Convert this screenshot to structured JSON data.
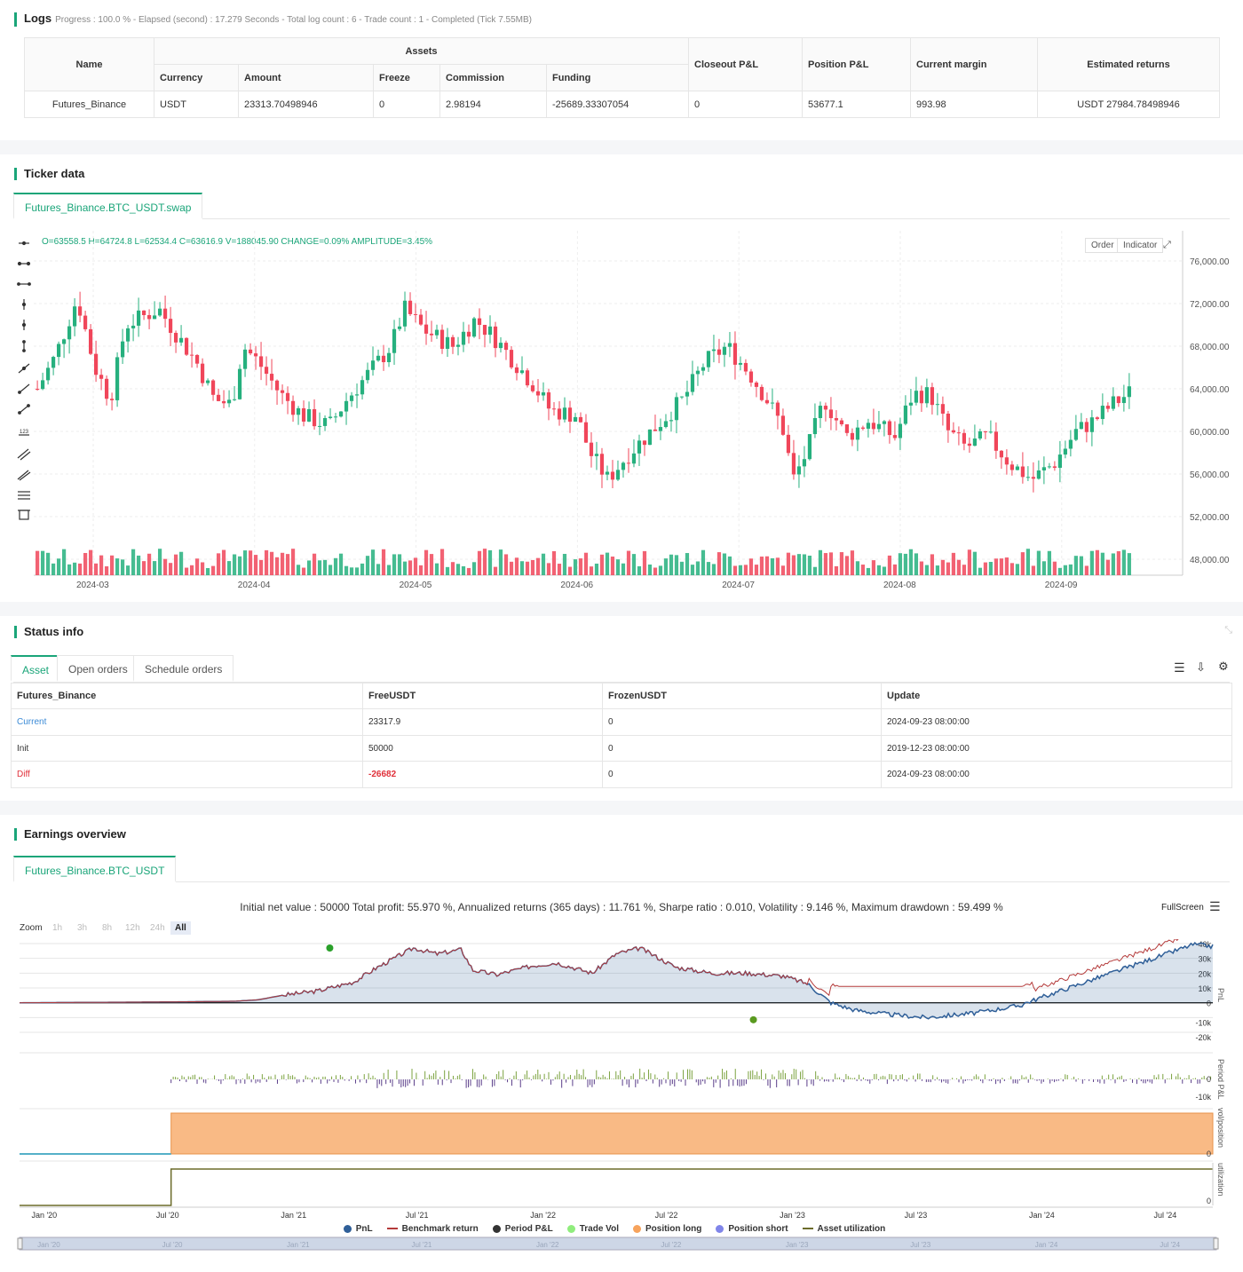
{
  "logs": {
    "title": "Logs",
    "progress": "Progress : 100.0 % - Elapsed (second) : 17.279  Seconds - Total log count : 6 - Trade count : 1 - Completed (Tick 7.55MB)",
    "headers": {
      "name": "Name",
      "assets": "Assets",
      "currency": "Currency",
      "amount": "Amount",
      "freeze": "Freeze",
      "commission": "Commission",
      "funding": "Funding",
      "closeout": "Closeout P&L",
      "position": "Position P&L",
      "margin": "Current margin",
      "estimated": "Estimated returns"
    },
    "row": {
      "name": "Futures_Binance",
      "currency": "USDT",
      "amount": "23313.70498946",
      "freeze": "0",
      "commission": "2.98194",
      "funding": "-25689.33307054",
      "closeout": "0",
      "position": "53677.1",
      "margin": "993.98",
      "estimated": "USDT 27984.78498946"
    }
  },
  "ticker": {
    "title": "Ticker data",
    "tab": "Futures_Binance.BTC_USDT.swap",
    "ohlc": "O=63558.5 H=64724.8 L=62534.4 C=63616.9 V=188045.90 CHANGE=0.09% AMPLITUDE=3.45%",
    "order_btn": "Order",
    "indicator_btn": "Indicator",
    "y_labels": [
      "76,000.00",
      "72,000.00",
      "68,000.00",
      "64,000.00",
      "60,000.00",
      "56,000.00",
      "52,000.00",
      "48,000.00"
    ],
    "x_labels": [
      "2024-03",
      "2024-04",
      "2024-05",
      "2024-06",
      "2024-07",
      "2024-08",
      "2024-09"
    ]
  },
  "status": {
    "title": "Status info",
    "tabs": [
      "Asset",
      "Open orders",
      "Schedule orders"
    ],
    "headers": [
      "Futures_Binance",
      "FreeUSDT",
      "FrozenUSDT",
      "Update"
    ],
    "rows": [
      [
        "Current",
        "23317.9",
        "0",
        "2024-09-23 08:00:00"
      ],
      [
        "Init",
        "50000",
        "0",
        "2019-12-23 08:00:00"
      ],
      [
        "Diff",
        "-26682",
        "0",
        "2024-09-23 08:00:00"
      ]
    ]
  },
  "earnings": {
    "title": "Earnings overview",
    "tab": "Futures_Binance.BTC_USDT",
    "summary": "Initial net value : 50000 Total profit: 55.970 %, Annualized returns (365 days) : 11.761 %, Sharpe ratio : 0.010, Volatility : 9.146 %, Maximum drawdown : 59.499 %",
    "fullscreen": "FullScreen",
    "zoom_label": "Zoom",
    "zoom": [
      "1h",
      "3h",
      "8h",
      "12h",
      "24h",
      "All"
    ],
    "y_pnl": [
      "40k",
      "30k",
      "20k",
      "10k",
      "0",
      "-10k",
      "-20k"
    ],
    "y_period": [
      "0",
      "-10k"
    ],
    "y_vol": [
      "0"
    ],
    "y_util": [
      "0"
    ],
    "axis_titles": [
      "PnL",
      "Period P&L",
      "vol/position",
      "utilization"
    ],
    "x_labels": [
      "Jan '20",
      "Jul '20",
      "Jan '21",
      "Jul '21",
      "Jan '22",
      "Jul '22",
      "Jan '23",
      "Jul '23",
      "Jan '24",
      "Jul '24"
    ],
    "legend": [
      {
        "name": "PnL",
        "color": "#2f5f98"
      },
      {
        "name": "Benchmark return",
        "color": "#b43a3a"
      },
      {
        "name": "Period P&L",
        "color": "#333333"
      },
      {
        "name": "Trade Vol",
        "color": "#90ed7d"
      },
      {
        "name": "Position long",
        "color": "#f7a35c"
      },
      {
        "name": "Position short",
        "color": "#8085e9"
      },
      {
        "name": "Asset utilization",
        "color": "#6b6b2a"
      }
    ]
  },
  "colors": {
    "up": "#26b07e",
    "down": "#f0465a",
    "accent": "#1aa579"
  }
}
